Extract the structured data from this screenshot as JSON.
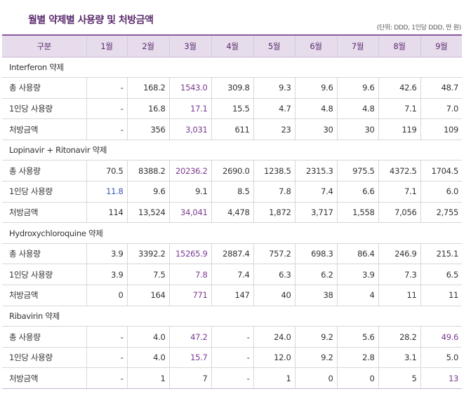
{
  "title": "월별 약제별 사용량 및 처방금액",
  "unit_note": "(단위: DDD, 1인당 DDD, 만 원)",
  "headers": [
    "구분",
    "1월",
    "2월",
    "3월",
    "4월",
    "5월",
    "6월",
    "7월",
    "8월",
    "9월"
  ],
  "sections": [
    {
      "name": "Interferon 약제",
      "rows": [
        {
          "label": "총 사용량",
          "values": [
            "-",
            "168.2",
            "1543.0",
            "309.8",
            "9.3",
            "9.6",
            "9.6",
            "42.6",
            "48.7"
          ]
        },
        {
          "label": "1인당 사용량",
          "values": [
            "-",
            "16.8",
            "17.1",
            "15.5",
            "4.7",
            "4.8",
            "4.8",
            "7.1",
            "7.0"
          ]
        },
        {
          "label": "처방금액",
          "values": [
            "-",
            "356",
            "3,031",
            "611",
            "23",
            "30",
            "30",
            "119",
            "109"
          ]
        }
      ]
    },
    {
      "name": "Lopinavir + Ritonavir 약제",
      "rows": [
        {
          "label": "총 사용량",
          "values": [
            "70.5",
            "8388.2",
            "20236.2",
            "2690.0",
            "1238.5",
            "2315.3",
            "975.5",
            "4372.5",
            "1704.5"
          ]
        },
        {
          "label": "1인당 사용량",
          "values": [
            "11.8",
            "9.6",
            "9.1",
            "8.5",
            "7.8",
            "7.4",
            "6.6",
            "7.1",
            "6.0"
          ]
        },
        {
          "label": "처방금액",
          "values": [
            "114",
            "13,524",
            "34,041",
            "4,478",
            "1,872",
            "3,717",
            "1,558",
            "7,056",
            "2,755"
          ]
        }
      ]
    },
    {
      "name": "Hydroxychloroquine 약제",
      "rows": [
        {
          "label": "총 사용량",
          "values": [
            "3.9",
            "3392.2",
            "15265.9",
            "2887.4",
            "757.2",
            "698.3",
            "86.4",
            "246.9",
            "215.1"
          ]
        },
        {
          "label": "1인당 사용량",
          "values": [
            "3.9",
            "7.5",
            "7.8",
            "7.4",
            "6.3",
            "6.2",
            "3.9",
            "7.3",
            "6.5"
          ]
        },
        {
          "label": "처방금액",
          "values": [
            "0",
            "164",
            "771",
            "147",
            "40",
            "38",
            "4",
            "11",
            "11"
          ]
        }
      ]
    },
    {
      "name": "Ribavirin 약제",
      "rows": [
        {
          "label": "총 사용량",
          "values": [
            "-",
            "4.0",
            "47.2",
            "-",
            "24.0",
            "9.2",
            "5.6",
            "28.2",
            "49.6"
          ]
        },
        {
          "label": "1인당 사용량",
          "values": [
            "-",
            "4.0",
            "15.7",
            "-",
            "12.0",
            "9.2",
            "2.8",
            "3.1",
            "5.0"
          ]
        },
        {
          "label": "처방금액",
          "values": [
            "-",
            "1",
            "7",
            "-",
            "1",
            "0",
            "0",
            "5",
            "13"
          ]
        }
      ]
    }
  ],
  "highlight_color": "#7a3b92",
  "header_bg": "#e7dcec"
}
